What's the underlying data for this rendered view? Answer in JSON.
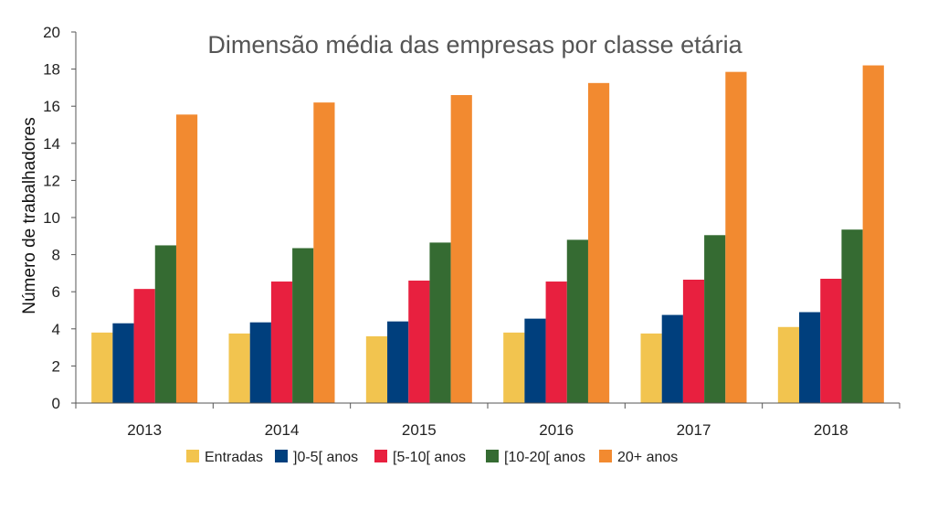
{
  "chart_data": {
    "type": "bar",
    "title": "Dimensão média das empresas por classe etária",
    "xlabel": "",
    "ylabel": "Número de trabalhadores",
    "ylim": [
      0,
      20
    ],
    "yticks": [
      0,
      2,
      4,
      6,
      8,
      10,
      12,
      14,
      16,
      18,
      20
    ],
    "grid": false,
    "legend_position": "bottom",
    "categories": [
      "2013",
      "2014",
      "2015",
      "2016",
      "2017",
      "2018"
    ],
    "series": [
      {
        "name": "Entradas",
        "color": "#f2c44f",
        "values": [
          3.8,
          3.75,
          3.6,
          3.8,
          3.75,
          4.1
        ]
      },
      {
        "name": "]0-5[ anos",
        "color": "#003f7d",
        "values": [
          4.3,
          4.35,
          4.4,
          4.55,
          4.75,
          4.9
        ]
      },
      {
        "name": "[5-10[ anos",
        "color": "#e8203f",
        "values": [
          6.15,
          6.55,
          6.6,
          6.55,
          6.65,
          6.7
        ]
      },
      {
        "name": "[10-20[ anos",
        "color": "#356b32",
        "values": [
          8.5,
          8.35,
          8.65,
          8.8,
          9.05,
          9.35
        ]
      },
      {
        "name": "20+ anos",
        "color": "#f28a30",
        "values": [
          15.55,
          16.2,
          16.6,
          17.25,
          17.85,
          18.2
        ]
      }
    ]
  }
}
